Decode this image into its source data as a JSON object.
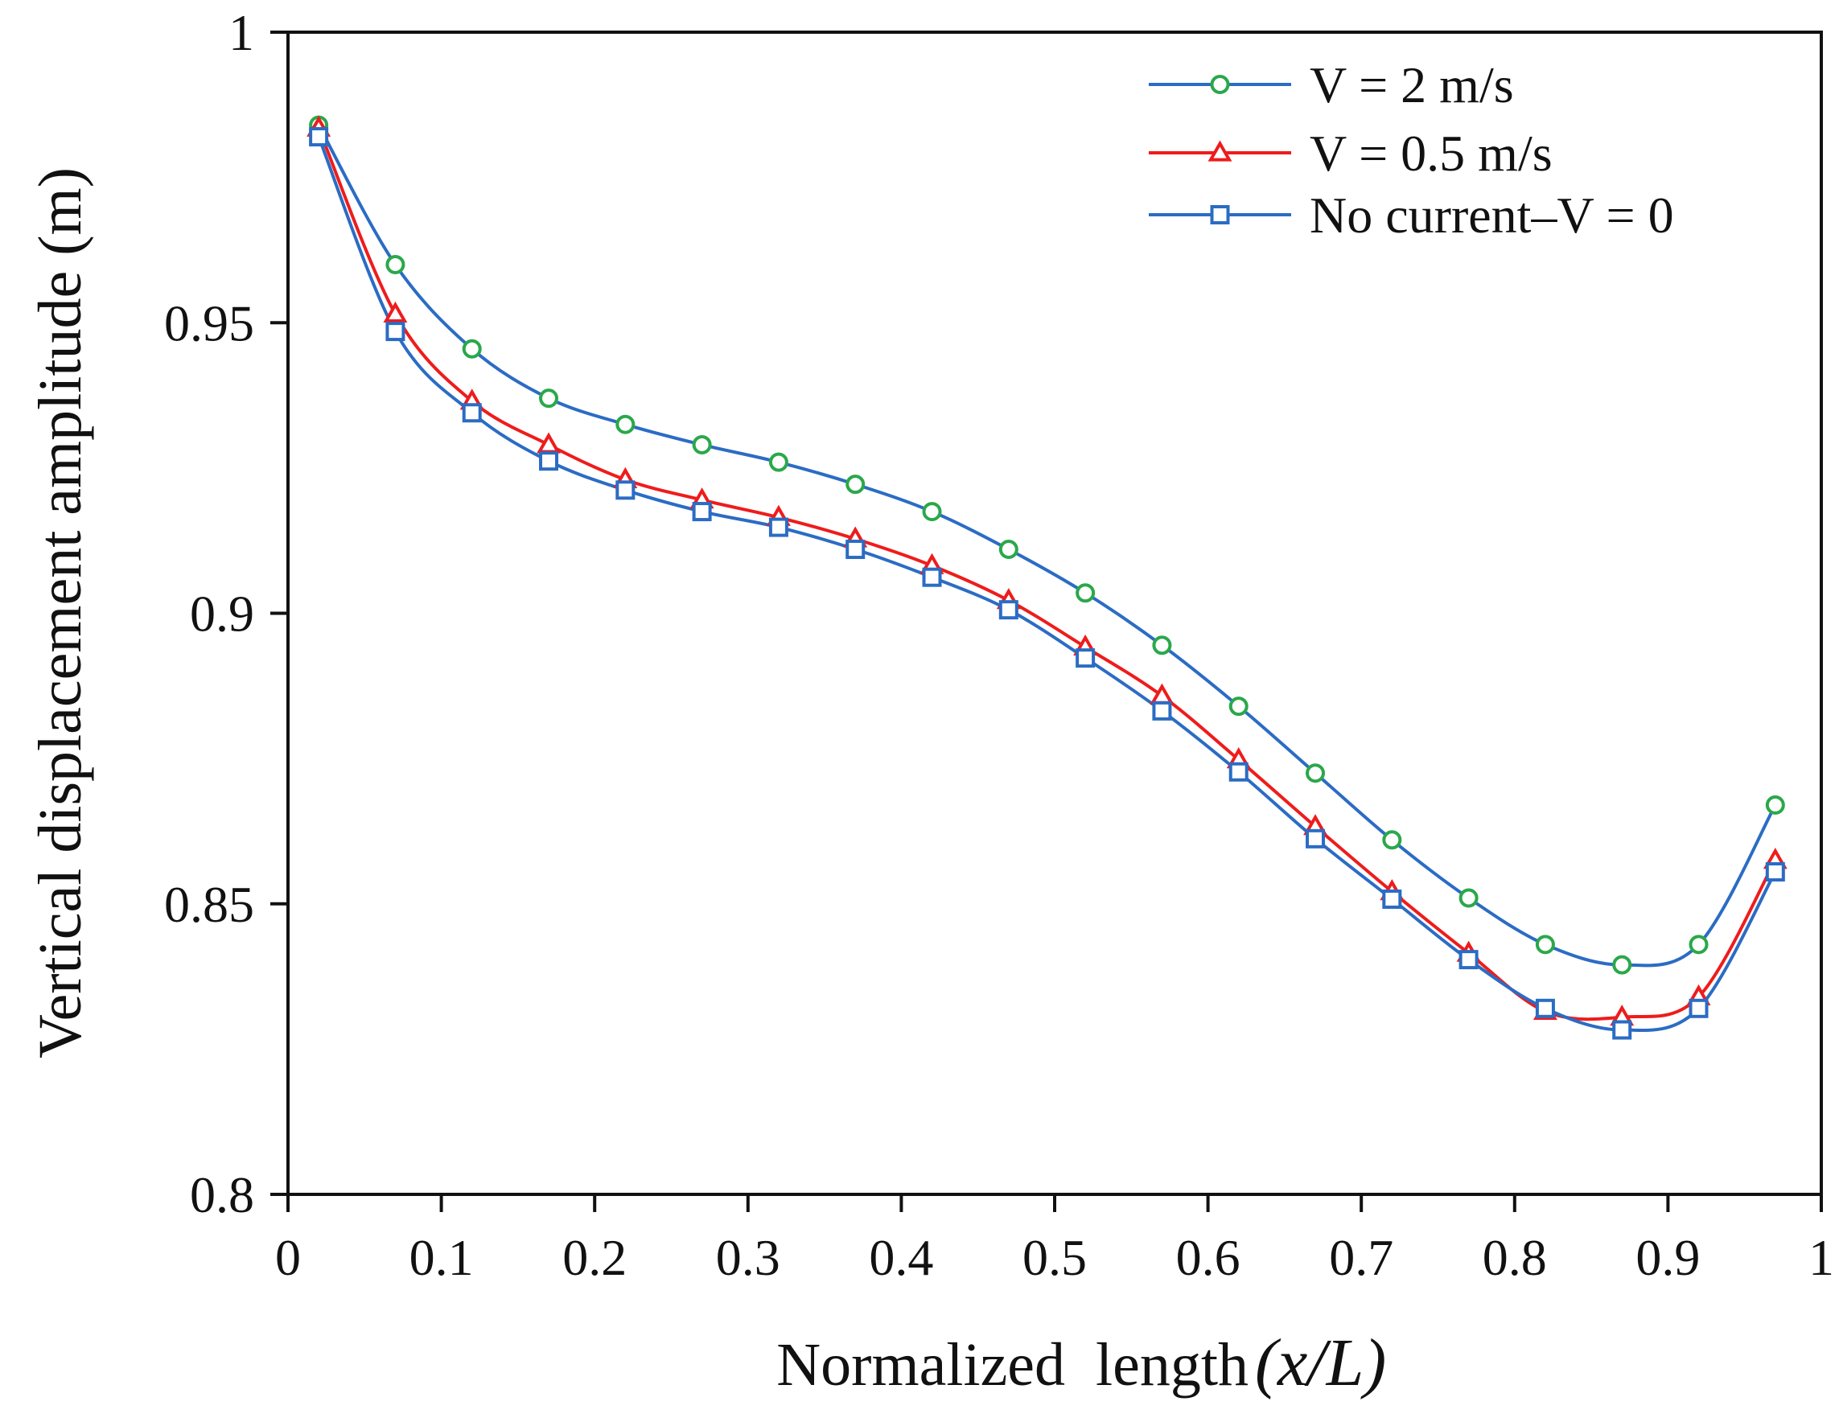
{
  "chart_data": {
    "type": "line",
    "title": "",
    "xlabel": "Normalized  length",
    "xlabel_symbol": "(x/L)",
    "ylabel": "Vertical  displacement  amplitude  (m)",
    "xlim": [
      0,
      1
    ],
    "ylim": [
      0.8,
      1
    ],
    "x_ticks": [
      0,
      0.1,
      0.2,
      0.3,
      0.4,
      0.5,
      0.6,
      0.7,
      0.8,
      0.9,
      1
    ],
    "x_tick_labels": [
      "0",
      "0.1",
      "0.2",
      "0.3",
      "0.4",
      "0.5",
      "0.6",
      "0.7",
      "0.8",
      "0.9",
      "1"
    ],
    "y_ticks": [
      0.8,
      0.85,
      0.9,
      0.95,
      1
    ],
    "y_tick_labels": [
      "0.8",
      "0.85",
      "0.9",
      "0.95",
      "1"
    ],
    "grid": false,
    "legend_position": "top-right",
    "x": [
      0.02,
      0.07,
      0.12,
      0.17,
      0.22,
      0.27,
      0.32,
      0.37,
      0.42,
      0.47,
      0.52,
      0.57,
      0.62,
      0.67,
      0.72,
      0.77,
      0.82,
      0.87,
      0.92,
      0.97
    ],
    "series": [
      {
        "name": "V = 2 m/s",
        "color": "#2b6cc4",
        "marker": "circle",
        "marker_color": "#2aa84a",
        "values": [
          0.984,
          0.96,
          0.9455,
          0.937,
          0.9325,
          0.929,
          0.926,
          0.9222,
          0.9175,
          0.911,
          0.9035,
          0.8945,
          0.884,
          0.8725,
          0.861,
          0.851,
          0.843,
          0.8395,
          0.843,
          0.867
        ]
      },
      {
        "name": "V = 0.5 m/s",
        "color": "#ee1c1c",
        "marker": "triangle",
        "marker_color": "#ee1c1c",
        "values": [
          0.9835,
          0.9515,
          0.9365,
          0.929,
          0.923,
          0.9195,
          0.9165,
          0.9128,
          0.9082,
          0.9022,
          0.8942,
          0.8858,
          0.8748,
          0.8633,
          0.8521,
          0.8415,
          0.8315,
          0.8305,
          0.834,
          0.8575
        ]
      },
      {
        "name": "No current–V = 0",
        "color": "#2b6cc4",
        "marker": "square",
        "marker_color": "#2b6cc4",
        "values": [
          0.982,
          0.9485,
          0.9345,
          0.9262,
          0.9212,
          0.9175,
          0.9148,
          0.911,
          0.9062,
          0.9006,
          0.8923,
          0.8832,
          0.8727,
          0.8612,
          0.8508,
          0.8404,
          0.832,
          0.8283,
          0.832,
          0.8555
        ]
      }
    ]
  }
}
